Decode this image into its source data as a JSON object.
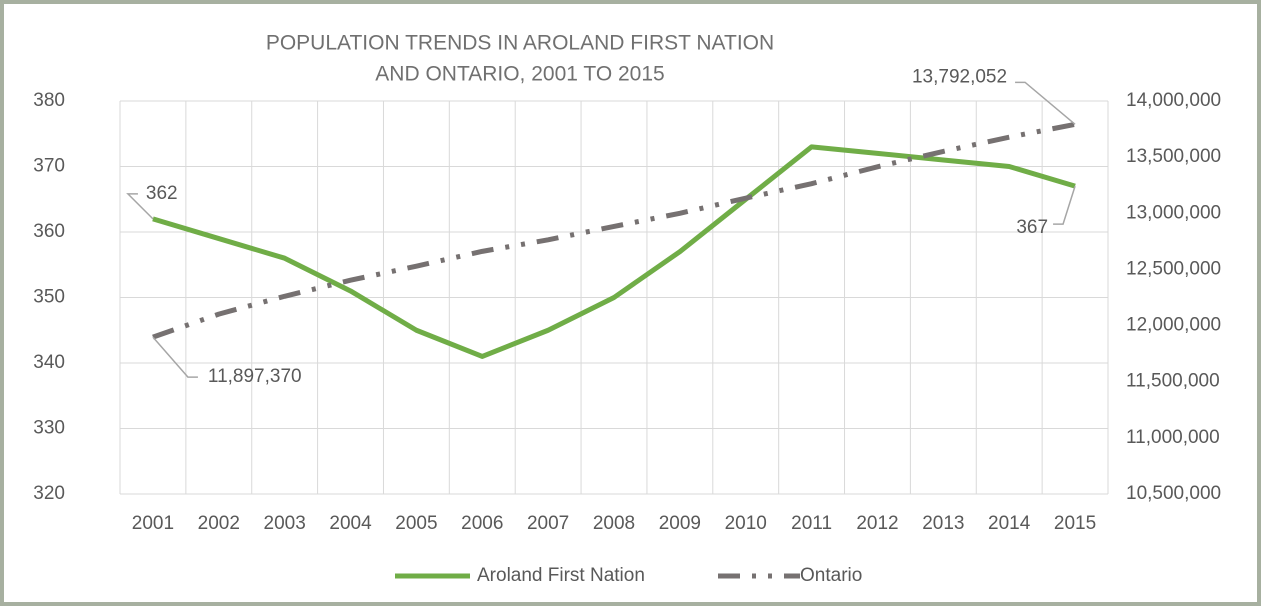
{
  "chart_data": {
    "type": "line",
    "title": [
      "POPULATION TRENDS IN AROLAND FIRST NATION",
      "AND ONTARIO, 2001 TO 2015"
    ],
    "categories": [
      "2001",
      "2002",
      "2003",
      "2004",
      "2005",
      "2006",
      "2007",
      "2008",
      "2009",
      "2010",
      "2011",
      "2012",
      "2013",
      "2014",
      "2015"
    ],
    "series": [
      {
        "name": "Aroland First Nation",
        "color": "#70ad47",
        "dash": "solid",
        "axis": "y",
        "values": [
          362,
          359,
          356,
          351,
          345,
          341,
          345,
          350,
          357,
          365,
          373,
          372,
          371,
          370,
          367
        ],
        "value_labels": [
          "362",
          null,
          null,
          null,
          null,
          null,
          null,
          null,
          null,
          null,
          null,
          null,
          null,
          null,
          "367"
        ]
      },
      {
        "name": "Ontario",
        "color": "#767171",
        "dash": "long-dash-dot-dot",
        "axis": "y2",
        "values": [
          11897370,
          12102000,
          12261000,
          12404000,
          12529000,
          12661000,
          12764000,
          12883000,
          13000000,
          13135000,
          13264000,
          13414000,
          13551000,
          13678000,
          13792052
        ],
        "value_labels": [
          "11,897,370",
          null,
          null,
          null,
          null,
          null,
          null,
          null,
          null,
          null,
          null,
          null,
          null,
          null,
          "13,792,052"
        ]
      }
    ],
    "ylim": [
      320,
      380
    ],
    "yticks": [
      320,
      330,
      340,
      350,
      360,
      370,
      380
    ],
    "y2lim": [
      10500000,
      14000000
    ],
    "y2ticks": [
      {
        "value": 10500000,
        "label": "10,500,000"
      },
      {
        "value": 11000000,
        "label": "11,000,000"
      },
      {
        "value": 11500000,
        "label": "11,500,000"
      },
      {
        "value": 12000000,
        "label": "12,000,000"
      },
      {
        "value": 12500000,
        "label": "12,500,000"
      },
      {
        "value": 13000000,
        "label": "13,000,000"
      },
      {
        "value": 13500000,
        "label": "13,500,000"
      },
      {
        "value": 14000000,
        "label": "14,000,000"
      }
    ],
    "grid": true,
    "legend": "bottom"
  }
}
